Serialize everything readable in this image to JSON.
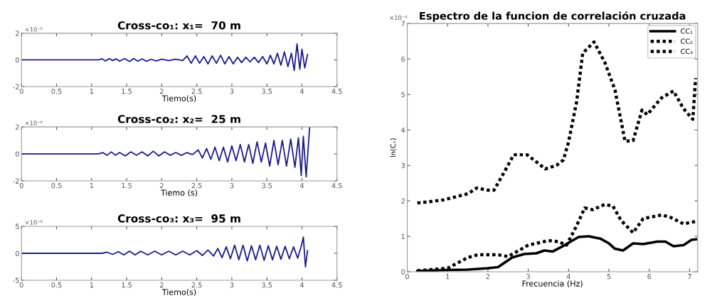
{
  "chart_data": [
    {
      "type": "line",
      "title": "Cross-co₁: x₁=  70 m",
      "xlabel": "Tiemo(s)",
      "annotations": [
        "×10⁻⁶"
      ],
      "xlim": [
        0,
        4.5
      ],
      "xticks": [
        0,
        0.5,
        1,
        1.5,
        2,
        2.5,
        3,
        3.5,
        4,
        4.5
      ],
      "ylim": [
        -2,
        2
      ],
      "yticks": [
        -2,
        0,
        2
      ],
      "grid": false,
      "legend": false,
      "series": [
        {
          "color": "#1c1c8a",
          "line_style": "solid",
          "x": [
            0,
            1.1,
            1.15,
            1.2,
            1.25,
            1.3,
            1.35,
            1.4,
            1.47,
            1.54,
            1.6,
            1.66,
            1.72,
            1.78,
            1.85,
            1.92,
            2.0,
            2.1,
            2.2,
            2.3,
            2.36,
            2.42,
            2.48,
            2.54,
            2.6,
            2.66,
            2.72,
            2.78,
            2.84,
            2.9,
            2.96,
            3.02,
            3.08,
            3.14,
            3.2,
            3.26,
            3.32,
            3.38,
            3.44,
            3.5,
            3.55,
            3.6,
            3.65,
            3.7,
            3.75,
            3.8,
            3.85,
            3.89,
            3.93,
            3.97,
            4.0,
            4.04,
            4.08
          ],
          "values": [
            0,
            0,
            0.08,
            -0.08,
            0.1,
            -0.05,
            0.08,
            -0.1,
            0.1,
            -0.12,
            0.1,
            -0.1,
            0.08,
            -0.1,
            0.05,
            -0.08,
            0.05,
            -0.05,
            0.05,
            -0.05,
            0.3,
            -0.25,
            0.3,
            -0.25,
            0.25,
            -0.3,
            0.3,
            -0.25,
            0.35,
            -0.3,
            0.25,
            -0.3,
            0.2,
            -0.2,
            0.2,
            -0.15,
            0.2,
            -0.2,
            0.25,
            -0.3,
            0.35,
            -0.3,
            0.5,
            -0.4,
            0.6,
            -0.5,
            0.5,
            -0.8,
            1.2,
            -0.7,
            0.8,
            -0.6,
            0.4
          ]
        }
      ]
    },
    {
      "type": "line",
      "title": "Cross-co₂: x₂=  25 m",
      "xlabel": "Tiemo (s)",
      "annotations": [
        "×10⁻⁶"
      ],
      "xlim": [
        0,
        4.5
      ],
      "xticks": [
        0,
        0.5,
        1,
        1.5,
        2,
        2.5,
        3,
        3.5,
        4,
        4.5
      ],
      "ylim": [
        -2,
        2
      ],
      "yticks": [
        -2,
        0,
        2
      ],
      "grid": false,
      "legend": false,
      "series": [
        {
          "color": "#1c1c8a",
          "line_style": "solid",
          "x": [
            0,
            1.1,
            1.16,
            1.22,
            1.28,
            1.34,
            1.4,
            1.48,
            1.56,
            1.64,
            1.72,
            1.8,
            1.88,
            1.96,
            2.04,
            2.12,
            2.2,
            2.28,
            2.36,
            2.44,
            2.52,
            2.58,
            2.64,
            2.7,
            2.76,
            2.82,
            2.88,
            2.94,
            3.0,
            3.06,
            3.12,
            3.18,
            3.24,
            3.3,
            3.36,
            3.42,
            3.48,
            3.54,
            3.6,
            3.66,
            3.72,
            3.78,
            3.84,
            3.9,
            3.95,
            3.99,
            4.02,
            4.06,
            4.09,
            4.11
          ],
          "values": [
            0,
            0,
            0.1,
            -0.1,
            0.15,
            -0.1,
            0.1,
            -0.15,
            0.15,
            -0.1,
            0.15,
            -0.15,
            0.2,
            -0.15,
            0.15,
            -0.1,
            0.1,
            -0.1,
            0.1,
            -0.05,
            0.3,
            -0.3,
            0.4,
            -0.4,
            0.5,
            -0.5,
            0.5,
            -0.6,
            0.6,
            -0.5,
            0.7,
            -0.6,
            0.7,
            -0.7,
            0.9,
            -0.6,
            0.8,
            -0.9,
            1.0,
            -0.8,
            1.0,
            -0.9,
            1.1,
            -1.0,
            1.2,
            -1.6,
            1.3,
            -1.7,
            0.5,
            2.0
          ]
        }
      ]
    },
    {
      "type": "line",
      "title": "Cross-co₃: x₃=  95 m",
      "xlabel": "Tiemo(s)",
      "annotations": [
        "×10⁻⁶"
      ],
      "xlim": [
        0,
        4.5
      ],
      "xticks": [
        0,
        0.5,
        1,
        1.5,
        2,
        2.5,
        3,
        3.5,
        4,
        4.5
      ],
      "ylim": [
        -5,
        5
      ],
      "yticks": [
        -5,
        0,
        5
      ],
      "grid": false,
      "legend": false,
      "series": [
        {
          "color": "#1c1c8a",
          "line_style": "solid",
          "x": [
            0,
            1.15,
            1.22,
            1.3,
            1.38,
            1.46,
            1.54,
            1.62,
            1.7,
            1.8,
            1.9,
            2.0,
            2.1,
            2.2,
            2.3,
            2.4,
            2.5,
            2.58,
            2.66,
            2.74,
            2.8,
            2.86,
            2.92,
            2.98,
            3.04,
            3.1,
            3.16,
            3.22,
            3.28,
            3.34,
            3.4,
            3.46,
            3.52,
            3.58,
            3.64,
            3.7,
            3.76,
            3.82,
            3.88,
            3.94,
            3.99,
            4.02,
            4.05,
            4.08
          ],
          "values": [
            0,
            0,
            0.2,
            -0.2,
            0.3,
            -0.3,
            0.4,
            -0.3,
            0.4,
            -0.3,
            0.4,
            -0.3,
            0.4,
            -0.3,
            0.4,
            -0.3,
            0.5,
            -0.4,
            0.6,
            -0.5,
            0.9,
            -0.8,
            1.2,
            -1.0,
            1.5,
            -1.2,
            1.5,
            -1.4,
            1.4,
            -1.2,
            1.5,
            -1.3,
            1.4,
            -1.2,
            1.3,
            -1.1,
            1.3,
            -1.0,
            1.2,
            -0.9,
            1.3,
            3.0,
            -2.5,
            0.5
          ]
        }
      ]
    },
    {
      "type": "line",
      "title": "Espectro de la funcion de correlación cruzada",
      "xlabel": "Frecuencia (Hz)",
      "ylabel": "ln(Cₓ)",
      "annotations": [
        "×10⁻⁴"
      ],
      "xlim": [
        0,
        7.2
      ],
      "xticks": [
        0,
        1,
        2,
        3,
        4,
        5,
        6,
        7
      ],
      "ylim": [
        0,
        7
      ],
      "yticks": [
        0,
        1,
        2,
        3,
        4,
        5,
        6,
        7
      ],
      "grid": false,
      "legend": "top right",
      "series": [
        {
          "name": "CC₁",
          "color": "#000000",
          "line_style": "solid",
          "x": [
            0.25,
            1.0,
            1.5,
            2.0,
            2.25,
            2.6,
            2.9,
            3.2,
            3.4,
            3.6,
            3.9,
            4.25,
            4.5,
            4.8,
            5.0,
            5.15,
            5.35,
            5.6,
            5.85,
            6.2,
            6.4,
            6.6,
            6.85,
            7.05,
            7.2
          ],
          "values": [
            0.02,
            0.05,
            0.06,
            0.1,
            0.13,
            0.4,
            0.5,
            0.52,
            0.6,
            0.57,
            0.75,
            0.98,
            1.0,
            0.93,
            0.8,
            0.65,
            0.6,
            0.8,
            0.78,
            0.85,
            0.85,
            0.72,
            0.75,
            0.9,
            0.92
          ]
        },
        {
          "name": "CC₂",
          "color": "#000000",
          "line_style": "dotted",
          "x": [
            0.25,
            1.0,
            1.5,
            1.75,
            2.25,
            2.5,
            3.0,
            3.5,
            3.75,
            3.95,
            4.2,
            4.4,
            4.6,
            4.9,
            5.1,
            5.3,
            5.6,
            5.85,
            6.3,
            6.5,
            6.85,
            7.15
          ],
          "values": [
            0.03,
            0.1,
            0.4,
            0.48,
            0.48,
            0.43,
            0.75,
            0.88,
            0.85,
            0.75,
            1.3,
            1.8,
            1.75,
            1.9,
            1.85,
            1.45,
            1.1,
            1.5,
            1.6,
            1.55,
            1.35,
            1.42
          ]
        },
        {
          "name": "CC₃",
          "color": "#000000",
          "line_style": "dotted",
          "x": [
            0.25,
            0.5,
            0.91,
            1.5,
            1.72,
            2.0,
            2.15,
            2.4,
            2.64,
            2.97,
            3.2,
            3.42,
            3.7,
            3.87,
            4.0,
            4.2,
            4.35,
            4.63,
            4.9,
            5.15,
            5.4,
            5.6,
            5.82,
            5.95,
            6.3,
            6.6,
            6.85,
            7.08,
            7.15
          ],
          "values": [
            1.94,
            1.97,
            2.03,
            2.2,
            2.36,
            2.3,
            2.3,
            2.8,
            3.3,
            3.3,
            3.1,
            2.9,
            3.0,
            3.15,
            3.66,
            4.8,
            6.16,
            6.48,
            5.9,
            5.13,
            3.68,
            3.7,
            4.56,
            4.43,
            4.9,
            5.1,
            4.6,
            4.3,
            5.46
          ]
        }
      ]
    }
  ]
}
